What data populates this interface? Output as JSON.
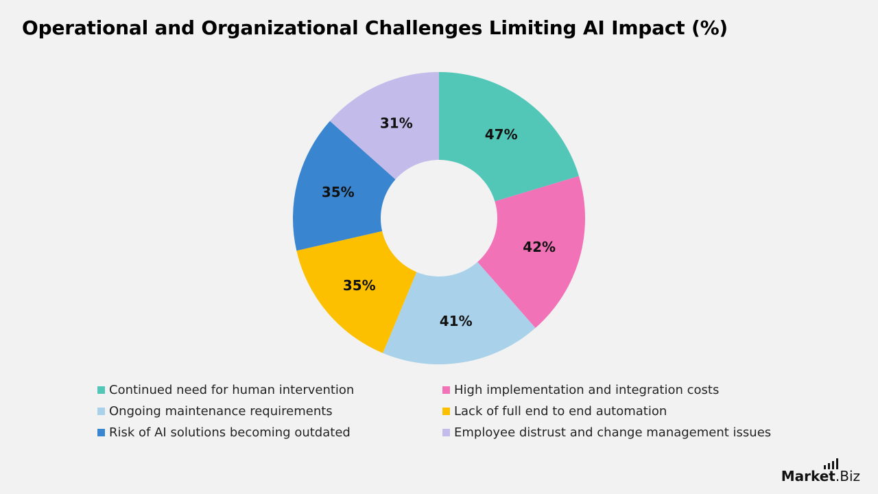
{
  "title": "Operational and Organizational Challenges Limiting AI Impact (%)",
  "logo": {
    "main": "Market",
    "suffix": ".Biz"
  },
  "chart_data": {
    "type": "pie",
    "donut": true,
    "title": "Operational and Organizational Challenges Limiting AI Impact (%)",
    "legend_position": "bottom",
    "slices": [
      {
        "label": "Continued need for human intervention",
        "value": 47,
        "display": "47%",
        "color": "#52c7b8"
      },
      {
        "label": "High implementation and integration costs",
        "value": 42,
        "display": "42%",
        "color": "#f272b8"
      },
      {
        "label": "Ongoing maintenance requirements",
        "value": 41,
        "display": "41%",
        "color": "#a9d1ea"
      },
      {
        "label": "Lack of full end to end automation",
        "value": 35,
        "display": "35%",
        "color": "#fdc000"
      },
      {
        "label": "Risk of AI solutions becoming outdated",
        "value": 35,
        "display": "35%",
        "color": "#3985cf"
      },
      {
        "label": "Employee distrust and change management issues",
        "value": 31,
        "display": "31%",
        "color": "#c3bbe9"
      }
    ]
  }
}
